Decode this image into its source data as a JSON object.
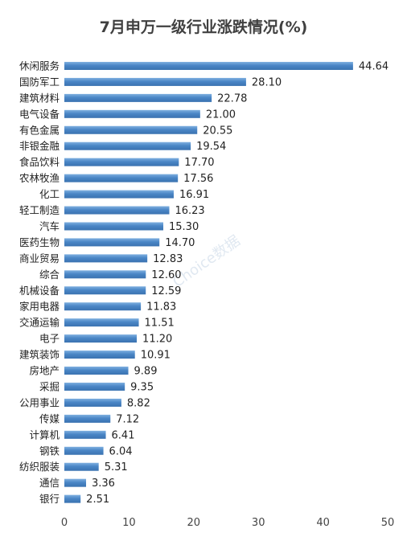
{
  "chart_data": {
    "type": "bar",
    "orientation": "horizontal",
    "title": "7月申万一级行业涨跌情况(%)",
    "categories": [
      "休闲服务",
      "国防军工",
      "建筑材料",
      "电气设备",
      "有色金属",
      "非银金融",
      "食品饮料",
      "农林牧渔",
      "化工",
      "轻工制造",
      "汽车",
      "医药生物",
      "商业贸易",
      "综合",
      "机械设备",
      "家用电器",
      "交通运输",
      "电子",
      "建筑装饰",
      "房地产",
      "采掘",
      "公用事业",
      "传媒",
      "计算机",
      "钢铁",
      "纺织服装",
      "通信",
      "银行"
    ],
    "values": [
      44.64,
      28.1,
      22.78,
      21.0,
      20.55,
      19.54,
      17.7,
      17.56,
      16.91,
      16.23,
      15.3,
      14.7,
      12.83,
      12.6,
      12.59,
      11.83,
      11.51,
      11.2,
      10.91,
      9.89,
      9.35,
      8.82,
      7.12,
      6.41,
      6.04,
      5.31,
      3.36,
      2.51
    ],
    "value_labels": [
      "44.64",
      "28.10",
      "22.78",
      "21.00",
      "20.55",
      "19.54",
      "17.70",
      "17.56",
      "16.91",
      "16.23",
      "15.30",
      "14.70",
      "12.83",
      "12.60",
      "12.59",
      "11.83",
      "11.51",
      "11.20",
      "10.91",
      "9.89",
      "9.35",
      "8.82",
      "7.12",
      "6.41",
      "6.04",
      "5.31",
      "3.36",
      "2.51"
    ],
    "xlim": [
      0,
      50
    ],
    "xticks": [
      0,
      10,
      20,
      30,
      40,
      50
    ],
    "xtick_labels": [
      "0",
      "10",
      "20",
      "30",
      "40",
      "50"
    ],
    "grid": false,
    "legend": "none",
    "bar_color": "#4a86c6"
  },
  "watermark": "Choice数据"
}
